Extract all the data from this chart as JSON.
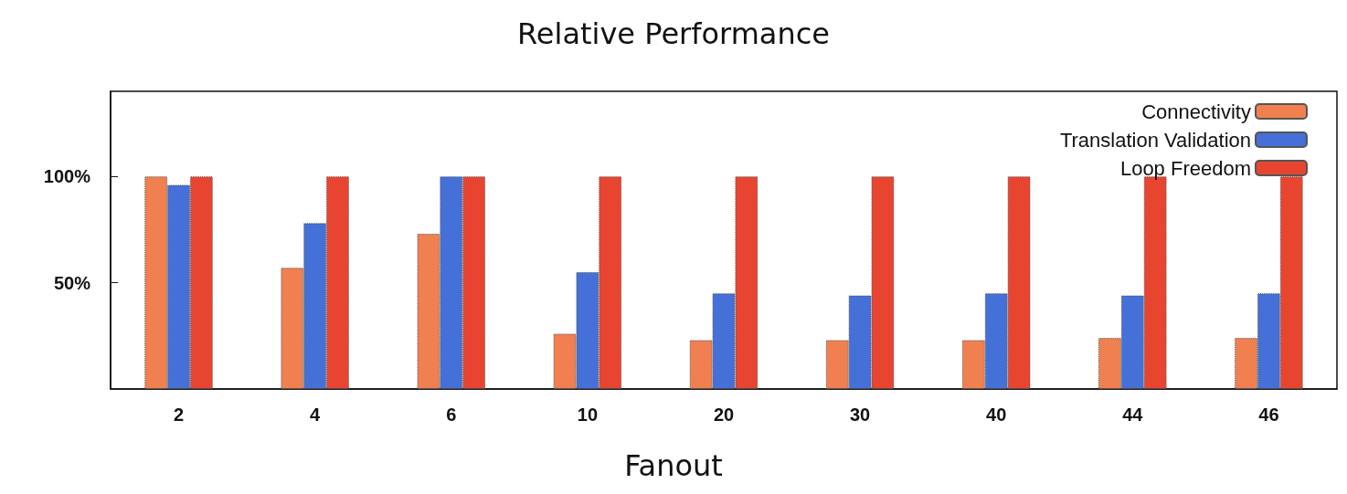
{
  "chart_data": {
    "type": "bar",
    "title": "Relative Performance",
    "xlabel": "Fanout",
    "categories": [
      "2",
      "4",
      "6",
      "10",
      "20",
      "30",
      "40",
      "44",
      "46"
    ],
    "series": [
      {
        "name": "Connectivity",
        "color": "#f08050",
        "values": [
          100,
          57,
          73,
          26,
          23,
          23,
          23,
          24,
          24
        ]
      },
      {
        "name": "Translation Validation",
        "color": "#4470d8",
        "values": [
          96,
          78,
          100,
          55,
          45,
          44,
          45,
          44,
          45
        ]
      },
      {
        "name": "Loop Freedom",
        "color": "#e84530",
        "values": [
          100,
          100,
          100,
          100,
          100,
          100,
          100,
          100,
          100
        ]
      }
    ],
    "ylim": [
      0,
      140
    ],
    "yticks": [
      {
        "value": 50,
        "label": "50%"
      },
      {
        "value": 100,
        "label": "100%"
      }
    ],
    "grid": false,
    "legend": "top right"
  }
}
